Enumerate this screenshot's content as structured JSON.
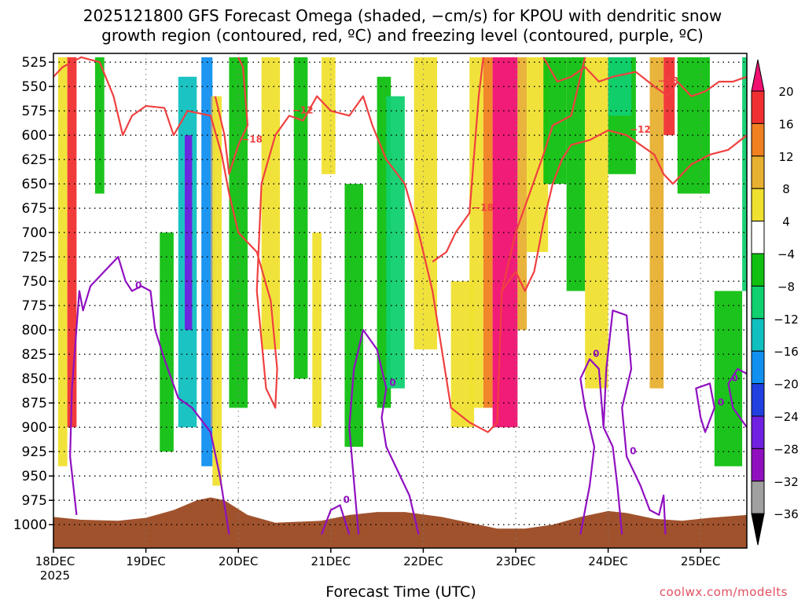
{
  "title_line1": "2025121800 GFS Forecast Omega (shaded, −cm/s) for KPOU with dendritic snow",
  "title_line2": "growth region (contoured, red, ºC) and freezing level (contoured, purple, ºC)",
  "credit": "coolwx.com/modelts",
  "chart_data": {
    "type": "heatmap",
    "xlabel": "Forecast Time (UTC)",
    "x_ticks": [
      "18DEC",
      "19DEC",
      "20DEC",
      "21DEC",
      "22DEC",
      "23DEC",
      "24DEC",
      "25DEC"
    ],
    "x_tick_sub": "2025",
    "x_range_days": [
      0,
      7.5
    ],
    "y_ticks": [
      525,
      550,
      575,
      600,
      625,
      650,
      675,
      700,
      725,
      750,
      775,
      800,
      825,
      850,
      875,
      900,
      925,
      950,
      975,
      1000
    ],
    "y_range_hpa": [
      516,
      1024
    ],
    "grid": "dotted",
    "colorbar": {
      "levels": [
        -36,
        -32,
        -28,
        -24,
        -20,
        -16,
        -12,
        -8,
        -4,
        4,
        8,
        12,
        16,
        20
      ],
      "labels": [
        "20",
        "16",
        "12",
        "8",
        "4",
        "−4",
        "−8",
        "−12",
        "−16",
        "−20",
        "−24",
        "−28",
        "−32",
        "−36"
      ],
      "colors": [
        "#a0a0a0",
        "#9010c0",
        "#7020e0",
        "#2040e0",
        "#1090f0",
        "#10c0c0",
        "#10d070",
        "#10c010",
        "#ffffff",
        "#f0e030",
        "#e8b030",
        "#f08020",
        "#f03030",
        "#f01070"
      ]
    },
    "shaded_bands": [
      {
        "x": [
          0.05,
          0.15
        ],
        "p": [
          520,
          940
        ],
        "value": 6
      },
      {
        "x": [
          0.15,
          0.25
        ],
        "p": [
          520,
          900
        ],
        "value": 18
      },
      {
        "x": [
          0.45,
          0.55
        ],
        "p": [
          520,
          660
        ],
        "value": -6
      },
      {
        "x": [
          1.15,
          1.3
        ],
        "p": [
          700,
          925
        ],
        "value": -6
      },
      {
        "x": [
          1.35,
          1.55
        ],
        "p": [
          540,
          900
        ],
        "value": -14
      },
      {
        "x": [
          1.42,
          1.5
        ],
        "p": [
          600,
          800
        ],
        "value": -26
      },
      {
        "x": [
          1.6,
          1.72
        ],
        "p": [
          520,
          940
        ],
        "value": -18
      },
      {
        "x": [
          1.7,
          1.75
        ],
        "p": [
          560,
          900
        ],
        "value": -34
      },
      {
        "x": [
          1.72,
          1.82
        ],
        "p": [
          560,
          960
        ],
        "value": 6
      },
      {
        "x": [
          1.9,
          2.1
        ],
        "p": [
          520,
          880
        ],
        "value": -6
      },
      {
        "x": [
          2.25,
          2.45
        ],
        "p": [
          520,
          820
        ],
        "value": 6
      },
      {
        "x": [
          2.6,
          2.75
        ],
        "p": [
          520,
          850
        ],
        "value": -6
      },
      {
        "x": [
          2.8,
          2.9
        ],
        "p": [
          700,
          900
        ],
        "value": 5
      },
      {
        "x": [
          2.9,
          3.05
        ],
        "p": [
          520,
          640
        ],
        "value": 6
      },
      {
        "x": [
          3.15,
          3.35
        ],
        "p": [
          650,
          920
        ],
        "value": -8
      },
      {
        "x": [
          3.5,
          3.65
        ],
        "p": [
          540,
          880
        ],
        "value": -6
      },
      {
        "x": [
          3.6,
          3.8
        ],
        "p": [
          560,
          860
        ],
        "value": -12
      },
      {
        "x": [
          3.9,
          4.15
        ],
        "p": [
          520,
          820
        ],
        "value": 6
      },
      {
        "x": [
          4.3,
          4.55
        ],
        "p": [
          750,
          900
        ],
        "value": 5
      },
      {
        "x": [
          4.5,
          4.65
        ],
        "p": [
          520,
          880
        ],
        "value": 6
      },
      {
        "x": [
          4.65,
          4.75
        ],
        "p": [
          520,
          880
        ],
        "value": 12
      },
      {
        "x": [
          4.75,
          5.02
        ],
        "p": [
          520,
          900
        ],
        "value": 20
      },
      {
        "x": [
          5.02,
          5.12
        ],
        "p": [
          520,
          800
        ],
        "value": 10
      },
      {
        "x": [
          5.12,
          5.35
        ],
        "p": [
          520,
          720
        ],
        "value": 6
      },
      {
        "x": [
          5.3,
          5.55
        ],
        "p": [
          520,
          650
        ],
        "value": -6
      },
      {
        "x": [
          5.55,
          5.75
        ],
        "p": [
          520,
          760
        ],
        "value": -6
      },
      {
        "x": [
          5.75,
          6.0
        ],
        "p": [
          520,
          860
        ],
        "value": 5
      },
      {
        "x": [
          6.0,
          6.3
        ],
        "p": [
          520,
          640
        ],
        "value": -8
      },
      {
        "x": [
          6.0,
          6.25
        ],
        "p": [
          520,
          580
        ],
        "value": -12
      },
      {
        "x": [
          6.45,
          6.6
        ],
        "p": [
          520,
          860
        ],
        "value": 10
      },
      {
        "x": [
          6.6,
          6.72
        ],
        "p": [
          520,
          600
        ],
        "value": 16
      },
      {
        "x": [
          6.75,
          7.1
        ],
        "p": [
          520,
          660
        ],
        "value": -6
      },
      {
        "x": [
          7.15,
          7.45
        ],
        "p": [
          760,
          940
        ],
        "value": -6
      },
      {
        "x": [
          7.45,
          7.5
        ],
        "p": [
          520,
          760
        ],
        "value": -10
      }
    ],
    "dendritic_contours": [
      {
        "label": "−12",
        "points": [
          [
            0,
            540
          ],
          [
            0.1,
            530
          ],
          [
            0.3,
            520
          ],
          [
            0.5,
            525
          ],
          [
            0.65,
            560
          ],
          [
            0.75,
            600
          ],
          [
            0.85,
            580
          ],
          [
            1.0,
            570
          ],
          [
            1.2,
            572
          ],
          [
            1.3,
            600
          ],
          [
            1.45,
            575
          ],
          [
            1.7,
            580
          ],
          [
            1.82,
            620
          ],
          [
            1.9,
            660
          ],
          [
            2.0,
            700
          ],
          [
            2.2,
            720
          ],
          [
            2.35,
            770
          ],
          [
            2.42,
            840
          ],
          [
            2.4,
            880
          ],
          [
            2.3,
            860
          ],
          [
            2.2,
            760
          ],
          [
            2.25,
            650
          ],
          [
            2.4,
            600
          ],
          [
            2.55,
            580
          ],
          [
            2.7,
            585
          ],
          [
            2.85,
            560
          ],
          [
            3.0,
            575
          ],
          [
            3.2,
            580
          ],
          [
            3.35,
            560
          ],
          [
            3.45,
            590
          ],
          [
            3.6,
            625
          ],
          [
            3.8,
            650
          ],
          [
            3.95,
            700
          ],
          [
            4.1,
            760
          ],
          [
            4.25,
            850
          ],
          [
            4.3,
            880
          ],
          [
            4.5,
            895
          ],
          [
            4.7,
            905
          ],
          [
            4.8,
            895
          ],
          [
            4.85,
            760
          ],
          [
            5.0,
            700
          ],
          [
            5.15,
            660
          ],
          [
            5.3,
            620
          ],
          [
            5.4,
            590
          ],
          [
            5.6,
            580
          ],
          [
            5.75,
            520
          ]
        ]
      },
      {
        "label": "−18",
        "points": [
          [
            1.75,
            560
          ],
          [
            1.85,
            600
          ],
          [
            1.9,
            640
          ],
          [
            2.0,
            610
          ],
          [
            2.1,
            590
          ],
          [
            2.05,
            530
          ],
          [
            2.0,
            520
          ]
        ]
      },
      {
        "label": "−18",
        "points": [
          [
            4.1,
            730
          ],
          [
            4.25,
            720
          ],
          [
            4.35,
            700
          ],
          [
            4.5,
            680
          ],
          [
            4.55,
            620
          ],
          [
            4.6,
            560
          ],
          [
            4.65,
            520
          ]
        ]
      },
      {
        "label": "−12",
        "points": [
          [
            4.85,
            760
          ],
          [
            5.0,
            740
          ],
          [
            5.1,
            760
          ],
          [
            5.2,
            740
          ],
          [
            5.3,
            690
          ],
          [
            5.4,
            650
          ],
          [
            5.5,
            625
          ],
          [
            5.6,
            610
          ],
          [
            5.8,
            605
          ],
          [
            5.9,
            600
          ],
          [
            6.0,
            595
          ],
          [
            6.2,
            600
          ],
          [
            6.35,
            610
          ],
          [
            6.5,
            620
          ],
          [
            6.6,
            640
          ],
          [
            6.7,
            650
          ],
          [
            6.8,
            640
          ],
          [
            6.9,
            630
          ],
          [
            7.0,
            625
          ],
          [
            7.1,
            620
          ],
          [
            7.3,
            615
          ],
          [
            7.5,
            600
          ]
        ]
      },
      {
        "label": "−18",
        "points": [
          [
            5.3,
            520
          ],
          [
            5.45,
            545
          ],
          [
            5.6,
            540
          ],
          [
            5.75,
            530
          ],
          [
            5.9,
            545
          ],
          [
            6.05,
            540
          ],
          [
            6.3,
            535
          ],
          [
            6.5,
            550
          ],
          [
            6.65,
            560
          ],
          [
            6.75,
            545
          ],
          [
            6.9,
            560
          ],
          [
            7.05,
            555
          ],
          [
            7.2,
            545
          ],
          [
            7.35,
            545
          ],
          [
            7.5,
            540
          ]
        ]
      }
    ],
    "freezing_contours": [
      {
        "label": "0",
        "points": [
          [
            0.25,
            990
          ],
          [
            0.18,
            930
          ],
          [
            0.2,
            860
          ],
          [
            0.28,
            760
          ],
          [
            0.32,
            780
          ],
          [
            0.4,
            755
          ],
          [
            0.55,
            740
          ],
          [
            0.7,
            725
          ],
          [
            0.78,
            750
          ],
          [
            0.85,
            760
          ],
          [
            0.95,
            755
          ],
          [
            1.05,
            760
          ],
          [
            1.1,
            800
          ],
          [
            1.2,
            830
          ],
          [
            1.35,
            870
          ],
          [
            1.5,
            880
          ],
          [
            1.7,
            905
          ],
          [
            1.8,
            950
          ],
          [
            1.9,
            1010
          ]
        ]
      },
      {
        "label": "0",
        "points": [
          [
            2.9,
            1010
          ],
          [
            3.0,
            985
          ],
          [
            3.1,
            980
          ],
          [
            3.2,
            1010
          ]
        ]
      },
      {
        "label": "0",
        "points": [
          [
            3.3,
            1010
          ],
          [
            3.2,
            900
          ],
          [
            3.25,
            840
          ],
          [
            3.35,
            800
          ],
          [
            3.5,
            820
          ],
          [
            3.6,
            860
          ],
          [
            3.55,
            890
          ],
          [
            3.6,
            920
          ],
          [
            3.75,
            950
          ],
          [
            3.85,
            970
          ],
          [
            3.95,
            1010
          ]
        ]
      },
      {
        "label": "0",
        "points": [
          [
            5.7,
            1010
          ],
          [
            5.8,
            960
          ],
          [
            5.85,
            920
          ],
          [
            5.75,
            880
          ],
          [
            5.7,
            850
          ],
          [
            5.8,
            830
          ],
          [
            5.9,
            840
          ],
          [
            5.95,
            900
          ],
          [
            6.05,
            920
          ],
          [
            6.1,
            960
          ],
          [
            6.15,
            1010
          ]
        ]
      },
      {
        "label": "0",
        "points": [
          [
            5.95,
            900
          ],
          [
            5.98,
            840
          ],
          [
            6.05,
            780
          ],
          [
            6.2,
            785
          ],
          [
            6.25,
            840
          ],
          [
            6.15,
            880
          ],
          [
            6.2,
            930
          ],
          [
            6.35,
            960
          ],
          [
            6.45,
            985
          ],
          [
            6.55,
            990
          ],
          [
            6.6,
            970
          ],
          [
            6.62,
            1010
          ]
        ]
      },
      {
        "label": "0",
        "points": [
          [
            7.0,
            890
          ],
          [
            6.95,
            860
          ],
          [
            7.1,
            855
          ],
          [
            7.15,
            880
          ],
          [
            7.05,
            905
          ],
          [
            7.0,
            890
          ]
        ]
      },
      {
        "label": "0",
        "points": [
          [
            7.5,
            900
          ],
          [
            7.35,
            880
          ],
          [
            7.3,
            855
          ],
          [
            7.4,
            840
          ],
          [
            7.5,
            845
          ]
        ]
      }
    ],
    "terrain": [
      [
        0,
        992
      ],
      [
        0.3,
        995
      ],
      [
        0.7,
        996
      ],
      [
        1.0,
        993
      ],
      [
        1.3,
        985
      ],
      [
        1.55,
        975
      ],
      [
        1.7,
        972
      ],
      [
        1.85,
        975
      ],
      [
        2.1,
        990
      ],
      [
        2.4,
        998
      ],
      [
        2.9,
        996
      ],
      [
        3.2,
        990
      ],
      [
        3.5,
        987
      ],
      [
        3.8,
        987
      ],
      [
        4.2,
        992
      ],
      [
        4.6,
        1000
      ],
      [
        4.8,
        1004
      ],
      [
        5.1,
        1004
      ],
      [
        5.4,
        1000
      ],
      [
        5.7,
        992
      ],
      [
        6.0,
        986
      ],
      [
        6.2,
        988
      ],
      [
        6.5,
        994
      ],
      [
        6.8,
        996
      ],
      [
        7.1,
        993
      ],
      [
        7.5,
        990
      ]
    ]
  }
}
